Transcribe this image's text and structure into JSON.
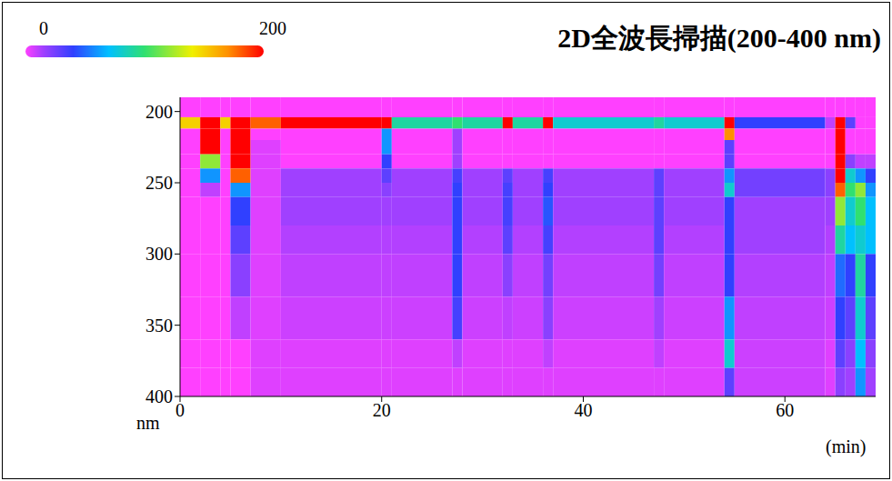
{
  "chart_data": {
    "type": "heatmap",
    "title": "2D全波長掃描(200-400 nm)",
    "x_label": "(min)",
    "y_label": "nm",
    "xlim": [
      0,
      69
    ],
    "xticks": [
      0,
      20,
      40,
      60
    ],
    "ylim": [
      190,
      400
    ],
    "yticks": [
      200,
      250,
      300,
      350,
      400
    ],
    "grid": false,
    "x_edges": [
      0,
      2,
      4,
      5,
      7,
      10,
      20,
      21,
      27,
      28,
      32,
      33,
      36,
      37,
      47,
      48,
      54,
      55,
      64,
      65,
      66,
      67,
      68,
      69
    ],
    "y_edges": [
      190,
      204,
      212,
      220,
      230,
      240,
      250,
      260,
      280,
      300,
      330,
      360,
      380,
      400
    ],
    "z": [
      [
        0,
        0,
        0,
        0,
        0,
        0,
        0,
        0,
        0,
        0,
        0,
        0,
        0,
        0,
        0,
        0,
        0,
        0,
        0,
        0,
        0,
        0,
        0
      ],
      [
        150,
        200,
        150,
        200,
        180,
        200,
        200,
        90,
        100,
        90,
        200,
        90,
        200,
        80,
        90,
        80,
        200,
        40,
        10,
        200,
        30,
        0,
        0
      ],
      [
        0,
        200,
        0,
        200,
        0,
        0,
        60,
        0,
        15,
        0,
        0,
        0,
        0,
        0,
        0,
        0,
        170,
        0,
        0,
        200,
        0,
        0,
        0
      ],
      [
        0,
        200,
        0,
        200,
        5,
        0,
        60,
        0,
        15,
        0,
        0,
        0,
        0,
        0,
        0,
        0,
        30,
        0,
        0,
        200,
        0,
        0,
        0
      ],
      [
        0,
        120,
        0,
        200,
        5,
        0,
        40,
        0,
        15,
        0,
        0,
        0,
        0,
        0,
        0,
        0,
        30,
        0,
        0,
        200,
        20,
        10,
        10
      ],
      [
        0,
        60,
        0,
        180,
        5,
        15,
        30,
        15,
        35,
        15,
        30,
        15,
        35,
        15,
        30,
        15,
        60,
        25,
        20,
        200,
        80,
        60,
        40
      ],
      [
        0,
        10,
        0,
        60,
        5,
        15,
        20,
        15,
        40,
        15,
        35,
        15,
        40,
        15,
        30,
        15,
        80,
        25,
        20,
        180,
        100,
        120,
        60
      ],
      [
        0,
        0,
        0,
        40,
        5,
        15,
        15,
        15,
        40,
        15,
        35,
        15,
        45,
        15,
        30,
        15,
        40,
        15,
        15,
        120,
        80,
        100,
        70
      ],
      [
        0,
        0,
        0,
        30,
        5,
        12,
        12,
        12,
        40,
        12,
        30,
        12,
        35,
        12,
        30,
        12,
        40,
        15,
        12,
        90,
        70,
        80,
        70
      ],
      [
        0,
        0,
        0,
        20,
        5,
        10,
        10,
        10,
        40,
        10,
        20,
        10,
        25,
        10,
        25,
        10,
        40,
        12,
        10,
        50,
        40,
        90,
        40
      ],
      [
        0,
        0,
        0,
        10,
        5,
        8,
        8,
        8,
        35,
        8,
        10,
        8,
        20,
        8,
        15,
        8,
        60,
        10,
        8,
        40,
        30,
        80,
        30
      ],
      [
        0,
        0,
        0,
        0,
        5,
        5,
        5,
        5,
        10,
        5,
        5,
        5,
        10,
        5,
        10,
        5,
        80,
        8,
        5,
        30,
        20,
        70,
        20
      ],
      [
        0,
        0,
        0,
        0,
        5,
        5,
        5,
        5,
        5,
        5,
        5,
        5,
        5,
        5,
        5,
        5,
        30,
        8,
        5,
        20,
        15,
        60,
        15
      ]
    ],
    "colorbar": {
      "range": [
        0,
        200
      ],
      "ticks": [
        0,
        200
      ]
    }
  }
}
